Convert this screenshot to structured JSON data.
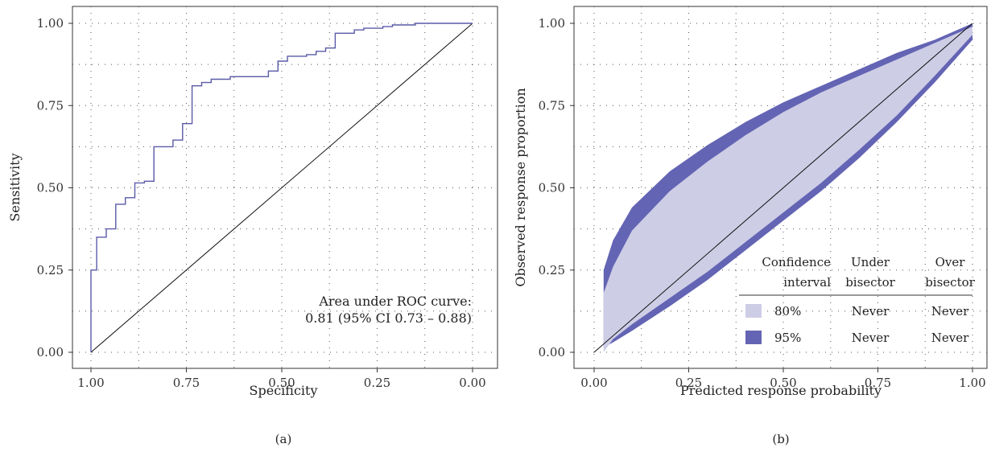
{
  "chart_data": [
    {
      "panel": "(a)",
      "type": "line",
      "xlabel": "Specificity",
      "ylabel": "Sensitivity",
      "xlim": [
        1.0,
        0.0
      ],
      "ylim": [
        0.0,
        1.0
      ],
      "xticks": [
        "1.00",
        "0.75",
        "0.50",
        "0.25",
        "0.00"
      ],
      "yticks": [
        "0.00",
        "0.25",
        "0.50",
        "0.75",
        "1.00"
      ],
      "grid": true,
      "annotation": [
        "Area under ROC curve:",
        "0.81 (95% CI 0.73 – 0.88)"
      ],
      "series": [
        {
          "step_points": [
            [
              1.0,
              0.0
            ],
            [
              1.0,
              0.25
            ],
            [
              0.985,
              0.25
            ],
            [
              0.985,
              0.35
            ],
            [
              0.96,
              0.35
            ],
            [
              0.96,
              0.375
            ],
            [
              0.935,
              0.375
            ],
            [
              0.935,
              0.45
            ],
            [
              0.91,
              0.45
            ],
            [
              0.91,
              0.47
            ],
            [
              0.885,
              0.47
            ],
            [
              0.885,
              0.515
            ],
            [
              0.86,
              0.515
            ],
            [
              0.86,
              0.52
            ],
            [
              0.835,
              0.52
            ],
            [
              0.835,
              0.625
            ],
            [
              0.785,
              0.625
            ],
            [
              0.785,
              0.645
            ],
            [
              0.76,
              0.645
            ],
            [
              0.76,
              0.695
            ],
            [
              0.735,
              0.695
            ],
            [
              0.735,
              0.81
            ],
            [
              0.71,
              0.81
            ],
            [
              0.71,
              0.82
            ],
            [
              0.685,
              0.82
            ],
            [
              0.685,
              0.83
            ],
            [
              0.635,
              0.83
            ],
            [
              0.635,
              0.838
            ],
            [
              0.535,
              0.838
            ],
            [
              0.535,
              0.855
            ],
            [
              0.51,
              0.855
            ],
            [
              0.51,
              0.885
            ],
            [
              0.485,
              0.885
            ],
            [
              0.485,
              0.9
            ],
            [
              0.435,
              0.9
            ],
            [
              0.435,
              0.905
            ],
            [
              0.41,
              0.905
            ],
            [
              0.41,
              0.915
            ],
            [
              0.385,
              0.915
            ],
            [
              0.385,
              0.925
            ],
            [
              0.36,
              0.925
            ],
            [
              0.36,
              0.97
            ],
            [
              0.31,
              0.97
            ],
            [
              0.31,
              0.98
            ],
            [
              0.285,
              0.98
            ],
            [
              0.285,
              0.985
            ],
            [
              0.235,
              0.985
            ],
            [
              0.235,
              0.99
            ],
            [
              0.21,
              0.99
            ],
            [
              0.21,
              0.995
            ],
            [
              0.15,
              0.995
            ],
            [
              0.15,
              1.0
            ],
            [
              0.0,
              1.0
            ]
          ],
          "color": "#5a5aa8"
        }
      ],
      "reference_line": [
        [
          1.0,
          0.0
        ],
        [
          0.0,
          1.0
        ]
      ]
    },
    {
      "panel": "(b)",
      "type": "area",
      "xlabel": "Predicted response probability",
      "ylabel": "Observed response proportion",
      "xlim": [
        0.0,
        1.0
      ],
      "ylim": [
        0.0,
        1.0
      ],
      "xticks": [
        "0.00",
        "0.25",
        "0.50",
        "0.75",
        "1.00"
      ],
      "yticks": [
        "0.00",
        "0.25",
        "0.50",
        "0.75",
        "1.00"
      ],
      "grid": true,
      "x": [
        0.025,
        0.05,
        0.1,
        0.2,
        0.3,
        0.4,
        0.5,
        0.6,
        0.7,
        0.8,
        0.9,
        1.0
      ],
      "series": [
        {
          "name": "95%",
          "color": "#6464b4",
          "upper": [
            0.25,
            0.34,
            0.44,
            0.55,
            0.63,
            0.7,
            0.76,
            0.81,
            0.86,
            0.91,
            0.95,
            1.0
          ],
          "lower": [
            0.015,
            0.03,
            0.065,
            0.14,
            0.22,
            0.31,
            0.4,
            0.49,
            0.59,
            0.7,
            0.82,
            0.95
          ]
        },
        {
          "name": "80%",
          "color": "#cdcde6",
          "upper": [
            0.18,
            0.26,
            0.37,
            0.49,
            0.58,
            0.66,
            0.73,
            0.79,
            0.84,
            0.89,
            0.94,
            0.99
          ],
          "lower": [
            0.0,
            0.04,
            0.085,
            0.165,
            0.245,
            0.335,
            0.425,
            0.515,
            0.615,
            0.72,
            0.84,
            0.965
          ]
        }
      ],
      "reference_line": [
        [
          0.0,
          0.0
        ],
        [
          1.0,
          1.0
        ]
      ],
      "legend": {
        "headers": [
          "Confidence",
          "interval",
          "Under",
          "bisector",
          "Over",
          "bisector"
        ],
        "rows": [
          {
            "level": "80%",
            "under": "Never",
            "over": "Never",
            "color": "#cdcde6"
          },
          {
            "level": "95%",
            "under": "Never",
            "over": "Never",
            "color": "#6464b4"
          }
        ]
      }
    }
  ]
}
